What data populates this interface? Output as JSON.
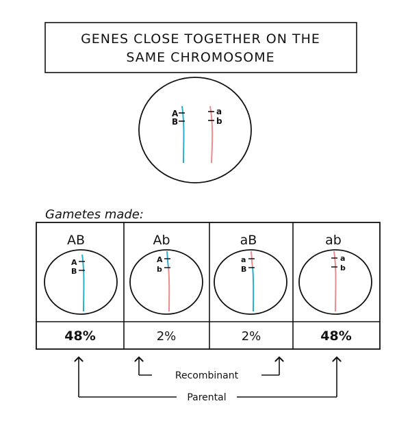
{
  "title": {
    "line1": "GENES CLOSE TOGETHER ON THE",
    "line2": "SAME CHROMOSOME"
  },
  "parent_cell": {
    "left_alleles": [
      "A",
      "B"
    ],
    "right_alleles": [
      "a",
      "b"
    ]
  },
  "gametes_label": "Gametes made:",
  "gametes": [
    {
      "header": "AB",
      "alleles": [
        "A",
        "B"
      ],
      "percent": "48%",
      "chromosome_color": "#2aaecf",
      "bold": true
    },
    {
      "header": "Ab",
      "alleles": [
        "A",
        "b"
      ],
      "percent": "2%",
      "chromosome_color": "#2aaecf|#ef8a8c",
      "bold": false
    },
    {
      "header": "aB",
      "alleles": [
        "a",
        "B"
      ],
      "percent": "2%",
      "chromosome_color": "#ef8a8c|#2aaecf",
      "bold": false
    },
    {
      "header": "ab",
      "alleles": [
        "a",
        "b"
      ],
      "percent": "48%",
      "chromosome_color": "#ef8a8c",
      "bold": true
    }
  ],
  "labels": {
    "recombinant": "Recombinant",
    "parental": "Parental"
  },
  "colors": {
    "blue_chromosome": "#2aaecf",
    "red_chromosome": "#ef8a8c",
    "ink": "#111111"
  }
}
